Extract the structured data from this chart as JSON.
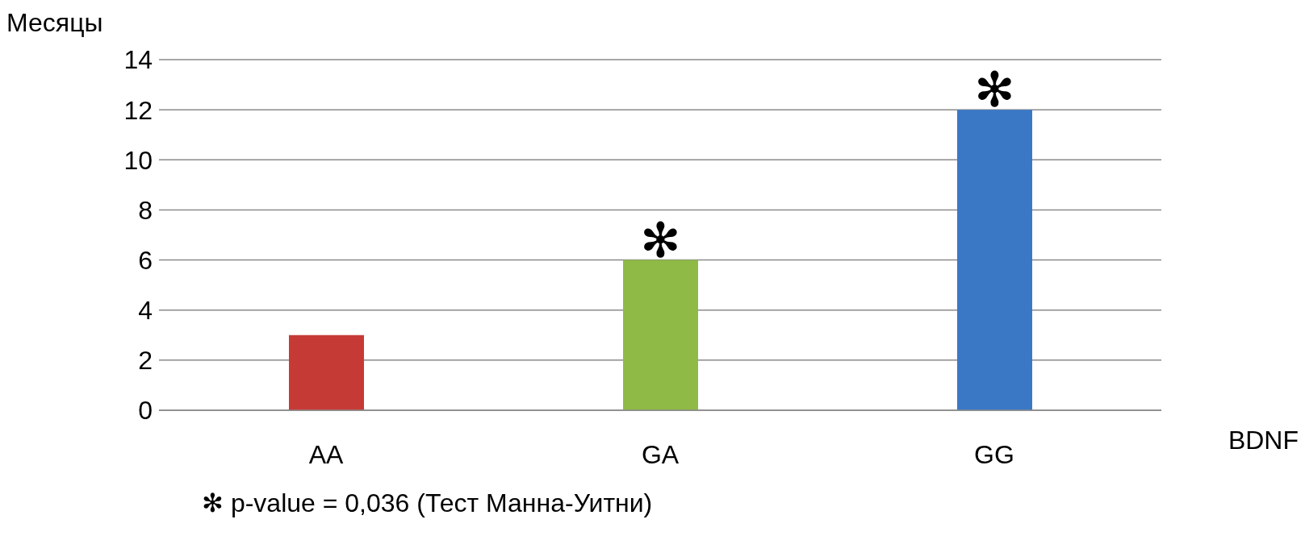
{
  "chart_data": {
    "type": "bar",
    "ylabel": "Месяцы",
    "xlabel": "BDNF",
    "categories": [
      "AA",
      "GA",
      "GG"
    ],
    "values": [
      3,
      6,
      12
    ],
    "colors": [
      "#c63a36",
      "#8fba45",
      "#3a78c6"
    ],
    "ylim": [
      0,
      14
    ],
    "yticks": [
      0,
      2,
      4,
      6,
      8,
      10,
      12,
      14
    ],
    "grid": "y",
    "annotations": [
      {
        "text": "✻",
        "x": "GA",
        "y": 6
      },
      {
        "text": "✻",
        "x": "GG",
        "y": 12
      },
      "✻ p-value = 0,036 (Тест Манна-Уитни)"
    ]
  }
}
